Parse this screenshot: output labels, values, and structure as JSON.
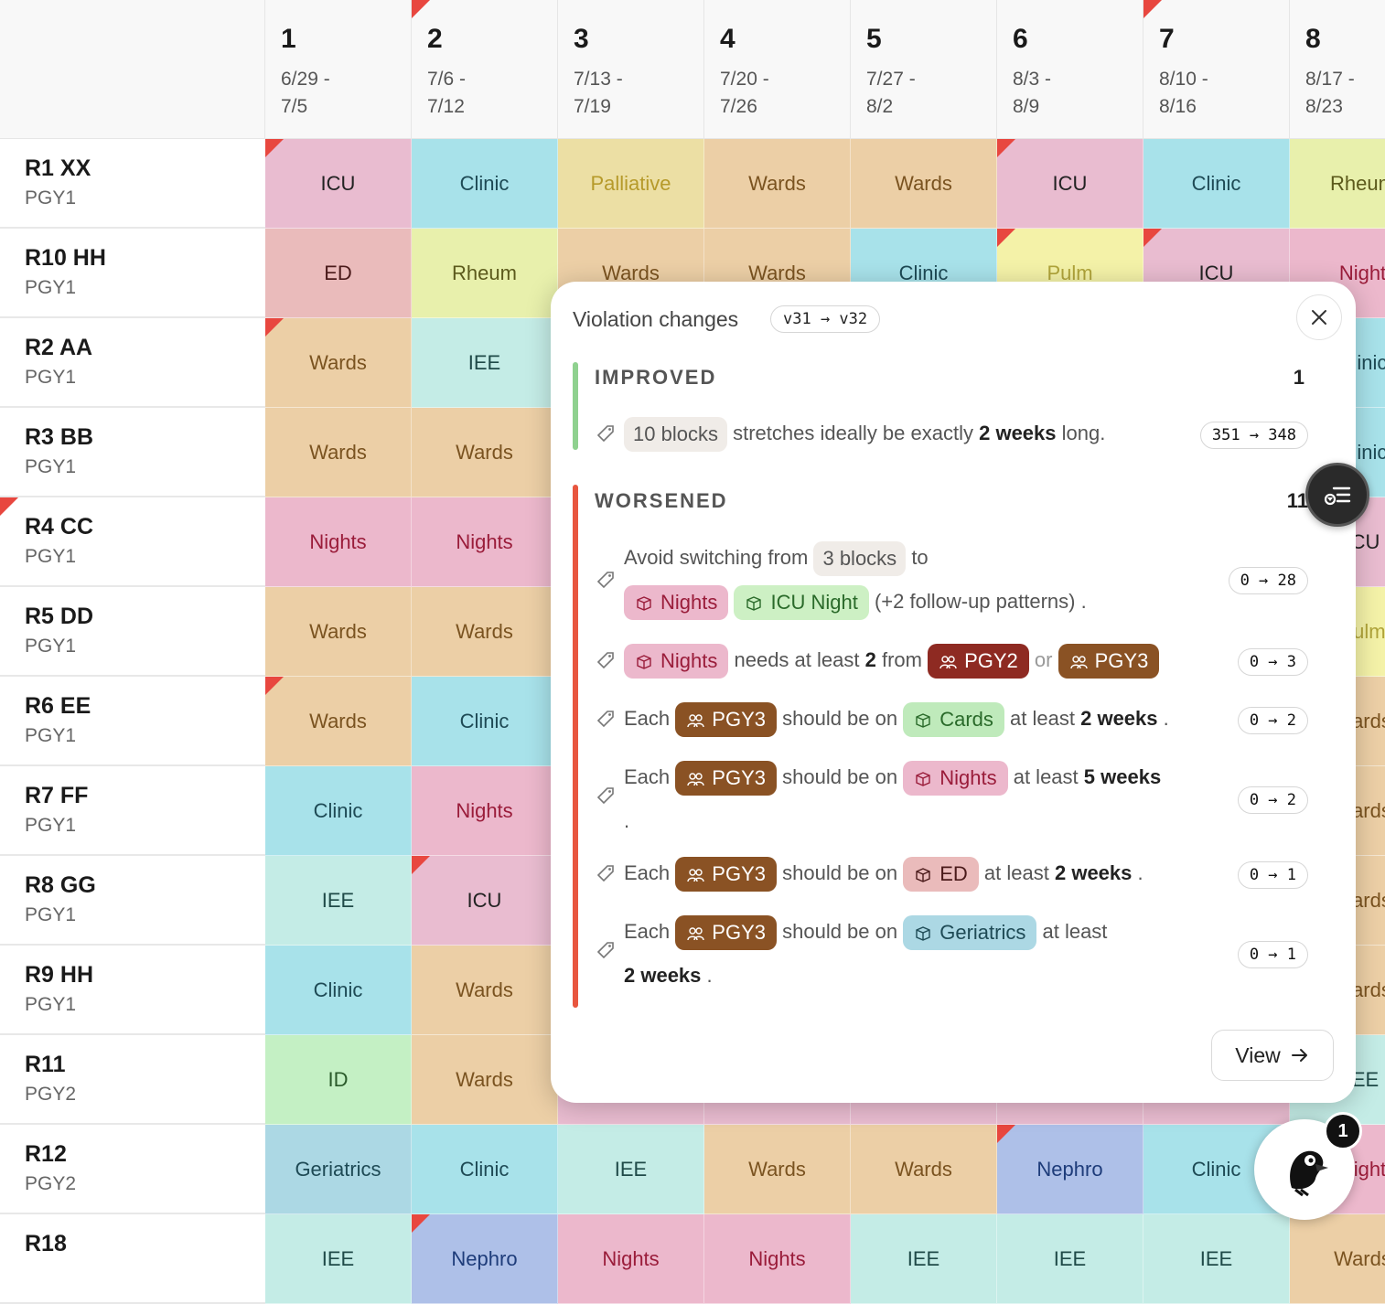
{
  "columns": [
    {
      "num": "1",
      "dates": "6/29 -\n7/5",
      "flag": false
    },
    {
      "num": "2",
      "dates": "7/6 -\n7/12",
      "flag": true
    },
    {
      "num": "3",
      "dates": "7/13 -\n7/19",
      "flag": false
    },
    {
      "num": "4",
      "dates": "7/20 -\n7/26",
      "flag": false
    },
    {
      "num": "5",
      "dates": "7/27 -\n8/2",
      "flag": false
    },
    {
      "num": "6",
      "dates": "8/3 -\n8/9",
      "flag": false
    },
    {
      "num": "7",
      "dates": "8/10 -\n8/16",
      "flag": true
    },
    {
      "num": "8",
      "dates": "8/17 -\n8/23",
      "flag": false
    }
  ],
  "rotation_colors": {
    "ICU": {
      "bg": "#e9bcd0",
      "fg": "#222222"
    },
    "Clinic": {
      "bg": "#a8e2ea",
      "fg": "#1e4a55"
    },
    "Palliative": {
      "bg": "#ecdfa4",
      "fg": "#b69a2a"
    },
    "Wards": {
      "bg": "#eccfa6",
      "fg": "#7a5320"
    },
    "Rheum": {
      "bg": "#e8f0ac",
      "fg": "#5c5a1c"
    },
    "ED": {
      "bg": "#eabbbb",
      "fg": "#4a1a1a"
    },
    "Pulm": {
      "bg": "#f4f2a8",
      "fg": "#b0a43a"
    },
    "Night": {
      "bg": "#ecb8cc",
      "fg": "#9a1c3a"
    },
    "Nights": {
      "bg": "#ecb8cc",
      "fg": "#9a1c3a"
    },
    "IEE": {
      "bg": "#c4ece6",
      "fg": "#1f4a48"
    },
    "ID": {
      "bg": "#c4f0c4",
      "fg": "#2a5a2a"
    },
    "Geriatrics": {
      "bg": "#acd8e4",
      "fg": "#1e4a55"
    },
    "Nephro": {
      "bg": "#aec0e8",
      "fg": "#1e3c7a"
    },
    "Unknown": {
      "bg": "#e9bcd0",
      "fg": "#222222"
    }
  },
  "rows": [
    {
      "name": "R1 XX",
      "pgy": "PGY1",
      "flag": false,
      "cells": [
        {
          "r": "ICU",
          "f": true
        },
        {
          "r": "Clinic",
          "f": false
        },
        {
          "r": "Palliative",
          "f": false
        },
        {
          "r": "Wards",
          "f": false
        },
        {
          "r": "Wards",
          "f": false
        },
        {
          "r": "ICU",
          "f": true
        },
        {
          "r": "Clinic",
          "f": false
        },
        {
          "r": "Rheum",
          "f": false
        }
      ]
    },
    {
      "name": "R10 HH",
      "pgy": "PGY1",
      "flag": false,
      "cells": [
        {
          "r": "ED",
          "f": false
        },
        {
          "r": "Rheum",
          "f": false
        },
        {
          "r": "Wards",
          "f": false
        },
        {
          "r": "Wards",
          "f": false
        },
        {
          "r": "Clinic",
          "f": false
        },
        {
          "r": "Pulm",
          "f": true
        },
        {
          "r": "ICU",
          "f": true
        },
        {
          "r": "Night",
          "f": false
        }
      ]
    },
    {
      "name": "R2 AA",
      "pgy": "PGY1",
      "flag": false,
      "cells": [
        {
          "r": "Wards",
          "f": true
        },
        {
          "r": "IEE",
          "f": false
        },
        {
          "r": "",
          "f": false
        },
        {
          "r": "",
          "f": false
        },
        {
          "r": "",
          "f": false
        },
        {
          "r": "",
          "f": false
        },
        {
          "r": "",
          "f": false
        },
        {
          "r": "Clinic",
          "f": false
        }
      ]
    },
    {
      "name": "R3 BB",
      "pgy": "PGY1",
      "flag": false,
      "cells": [
        {
          "r": "Wards",
          "f": false
        },
        {
          "r": "Wards",
          "f": false
        },
        {
          "r": "",
          "f": false
        },
        {
          "r": "",
          "f": false
        },
        {
          "r": "",
          "f": false
        },
        {
          "r": "",
          "f": false
        },
        {
          "r": "",
          "f": false
        },
        {
          "r": "Clinic",
          "f": false
        }
      ]
    },
    {
      "name": "R4 CC",
      "pgy": "PGY1",
      "flag": true,
      "cells": [
        {
          "r": "Nights",
          "f": false
        },
        {
          "r": "Nights",
          "f": false
        },
        {
          "r": "",
          "f": false
        },
        {
          "r": "",
          "f": false
        },
        {
          "r": "",
          "f": false
        },
        {
          "r": "",
          "f": false
        },
        {
          "r": "",
          "f": false
        },
        {
          "r": "ICU",
          "f": false
        }
      ]
    },
    {
      "name": "R5 DD",
      "pgy": "PGY1",
      "flag": false,
      "cells": [
        {
          "r": "Wards",
          "f": false
        },
        {
          "r": "Wards",
          "f": false
        },
        {
          "r": "",
          "f": false
        },
        {
          "r": "",
          "f": false
        },
        {
          "r": "",
          "f": false
        },
        {
          "r": "",
          "f": false
        },
        {
          "r": "",
          "f": false
        },
        {
          "r": "Pulm",
          "f": false
        }
      ]
    },
    {
      "name": "R6 EE",
      "pgy": "PGY1",
      "flag": false,
      "cells": [
        {
          "r": "Wards",
          "f": true
        },
        {
          "r": "Clinic",
          "f": false
        },
        {
          "r": "",
          "f": false
        },
        {
          "r": "",
          "f": false
        },
        {
          "r": "",
          "f": false
        },
        {
          "r": "",
          "f": false
        },
        {
          "r": "",
          "f": false
        },
        {
          "r": "Wards",
          "f": false
        }
      ]
    },
    {
      "name": "R7 FF",
      "pgy": "PGY1",
      "flag": false,
      "cells": [
        {
          "r": "Clinic",
          "f": false
        },
        {
          "r": "Nights",
          "f": false
        },
        {
          "r": "",
          "f": false
        },
        {
          "r": "",
          "f": false
        },
        {
          "r": "",
          "f": false
        },
        {
          "r": "",
          "f": false
        },
        {
          "r": "",
          "f": false
        },
        {
          "r": "Wards",
          "f": false
        }
      ]
    },
    {
      "name": "R8 GG",
      "pgy": "PGY1",
      "flag": false,
      "cells": [
        {
          "r": "IEE",
          "f": false
        },
        {
          "r": "ICU",
          "f": true
        },
        {
          "r": "",
          "f": false
        },
        {
          "r": "",
          "f": false
        },
        {
          "r": "",
          "f": false
        },
        {
          "r": "",
          "f": false
        },
        {
          "r": "",
          "f": false
        },
        {
          "r": "Wards",
          "f": false
        }
      ]
    },
    {
      "name": "R9 HH",
      "pgy": "PGY1",
      "flag": false,
      "cells": [
        {
          "r": "Clinic",
          "f": false
        },
        {
          "r": "Wards",
          "f": false
        },
        {
          "r": "",
          "f": false
        },
        {
          "r": "",
          "f": false
        },
        {
          "r": "",
          "f": false
        },
        {
          "r": "",
          "f": false
        },
        {
          "r": "",
          "f": false
        },
        {
          "r": "Wards",
          "f": false
        }
      ]
    },
    {
      "name": "R11",
      "pgy": "PGY2",
      "flag": false,
      "cells": [
        {
          "r": "ID",
          "f": false
        },
        {
          "r": "Wards",
          "f": false
        },
        {
          "r": "",
          "f": false
        },
        {
          "r": "",
          "f": false
        },
        {
          "r": "",
          "f": false
        },
        {
          "r": "",
          "f": false
        },
        {
          "r": "",
          "f": false
        },
        {
          "r": "IEE",
          "f": false
        }
      ]
    },
    {
      "name": "R12",
      "pgy": "PGY2",
      "flag": false,
      "cells": [
        {
          "r": "Geriatrics",
          "f": false
        },
        {
          "r": "Clinic",
          "f": false
        },
        {
          "r": "IEE",
          "f": false
        },
        {
          "r": "Wards",
          "f": false
        },
        {
          "r": "Wards",
          "f": false
        },
        {
          "r": "Nephro",
          "f": true
        },
        {
          "r": "Clinic",
          "f": false
        },
        {
          "r": "Night",
          "f": false
        }
      ]
    },
    {
      "name": "R18",
      "pgy": "",
      "flag": false,
      "cells": [
        {
          "r": "IEE",
          "f": false
        },
        {
          "r": "Nephro",
          "f": true
        },
        {
          "r": "Nights",
          "f": false
        },
        {
          "r": "Nights",
          "f": false
        },
        {
          "r": "IEE",
          "f": false
        },
        {
          "r": "IEE",
          "f": false
        },
        {
          "r": "IEE",
          "f": false
        },
        {
          "r": "Wards",
          "f": false
        }
      ]
    }
  ],
  "popup": {
    "title": "Violation changes",
    "version": "v31 → v32",
    "improved": {
      "heading": "IMPROVED",
      "count": "1",
      "text_pre": "stretches ideally be exactly",
      "chip": "10 blocks",
      "bold": "2 weeks",
      "text_post": "long.",
      "delta": "351 → 348"
    },
    "worsened": {
      "heading": "WORSENED",
      "count": "11",
      "i1": {
        "a": "Avoid switching from",
        "chip": "3 blocks",
        "b": "to",
        "r1": "Nights",
        "r2": "ICU Night",
        "c": "(+2 follow-up patterns) .",
        "delta": "0 → 28"
      },
      "i2": {
        "r": "Nights",
        "a": "needs at least",
        "n": "2",
        "b": "from",
        "g1": "PGY2",
        "or": "or",
        "g2": "PGY3",
        "delta": "0 → 3"
      },
      "i3": {
        "each": "Each",
        "g": "PGY3",
        "a": "should be on",
        "r": "Cards",
        "b": "at least",
        "w": "2 weeks",
        "end": ".",
        "delta": "0 → 2"
      },
      "i4": {
        "each": "Each",
        "g": "PGY3",
        "a": "should be on",
        "r": "Nights",
        "b": "at least",
        "w": "5 weeks",
        "end": ".",
        "delta": "0 → 2"
      },
      "i5": {
        "each": "Each",
        "g": "PGY3",
        "a": "should be on",
        "r": "ED",
        "b": "at least",
        "w": "2 weeks",
        "end": ".",
        "delta": "0 → 1"
      },
      "i6": {
        "each": "Each",
        "g": "PGY3",
        "a": "should be on",
        "r": "Geriatrics",
        "b": "at least",
        "w": "2 weeks",
        "end": ".",
        "delta": "0 → 1"
      }
    },
    "view_label": "View"
  },
  "badge_count": "1",
  "colors": {
    "improved": "#8fd18f",
    "worsened": "#e8563f",
    "pgy2": "#8e2a22",
    "pgy3": "#8a5224",
    "cards_bg": "#bfeabb",
    "cards_fg": "#2a6a2a",
    "icu_night_bg": "#cdf0c4",
    "icu_night_fg": "#2a6a2a"
  },
  "icons": [
    "alert-flag-icon",
    "close-icon",
    "tag-icon",
    "cube-icon",
    "users-icon",
    "arrow-right-icon",
    "filter-list-icon",
    "puffin-avatar-icon"
  ]
}
